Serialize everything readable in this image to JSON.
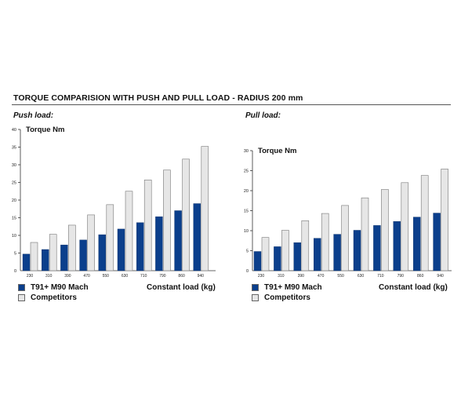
{
  "page_title": "TORQUE COMPARISION WITH PUSH AND PULL LOAD - RADIUS 200 mm",
  "legend": [
    {
      "label": "T91+ M90 Mach",
      "color": "#0b3f8c"
    },
    {
      "label": "Competitors",
      "color": "#e6e6e6"
    }
  ],
  "chart_data": [
    {
      "type": "bar",
      "subtitle": "Push load:",
      "ylabel": "Torque Nm",
      "xlabel": "Constant load (kg)",
      "ylim": [
        0,
        40
      ],
      "yticks": [
        5,
        10,
        15,
        20,
        25,
        30,
        35,
        40
      ],
      "grid": false,
      "categories": [
        "230",
        "310",
        "390",
        "470",
        "550",
        "630",
        "710",
        "790",
        "860",
        "940"
      ],
      "series": [
        {
          "name": "T91+ M90 Mach",
          "color": "#0b3f8c",
          "values": [
            4.7,
            6.0,
            7.3,
            8.7,
            10.2,
            11.8,
            13.6,
            15.3,
            17.0,
            19.0
          ]
        },
        {
          "name": "Competitors",
          "color": "#e6e6e6",
          "values": [
            8.0,
            10.3,
            12.9,
            15.8,
            18.7,
            22.5,
            25.7,
            28.5,
            31.6,
            35.2
          ]
        }
      ]
    },
    {
      "type": "bar",
      "subtitle": "Pull load:",
      "ylabel": "Torque Nm",
      "xlabel": "Constant load (kg)",
      "ylim": [
        0,
        30
      ],
      "yticks": [
        5,
        10,
        15,
        20,
        25,
        30
      ],
      "grid": false,
      "categories": [
        "230",
        "310",
        "390",
        "470",
        "550",
        "630",
        "710",
        "790",
        "860",
        "940"
      ],
      "series": [
        {
          "name": "T91+ M90 Mach",
          "color": "#0b3f8c",
          "values": [
            4.8,
            6.0,
            7.0,
            8.1,
            9.1,
            10.1,
            11.3,
            12.3,
            13.4,
            14.4
          ]
        },
        {
          "name": "Competitors",
          "color": "#e6e6e6",
          "values": [
            8.3,
            10.1,
            12.5,
            14.3,
            16.3,
            18.2,
            20.3,
            22.0,
            23.8,
            25.4
          ]
        }
      ]
    }
  ]
}
